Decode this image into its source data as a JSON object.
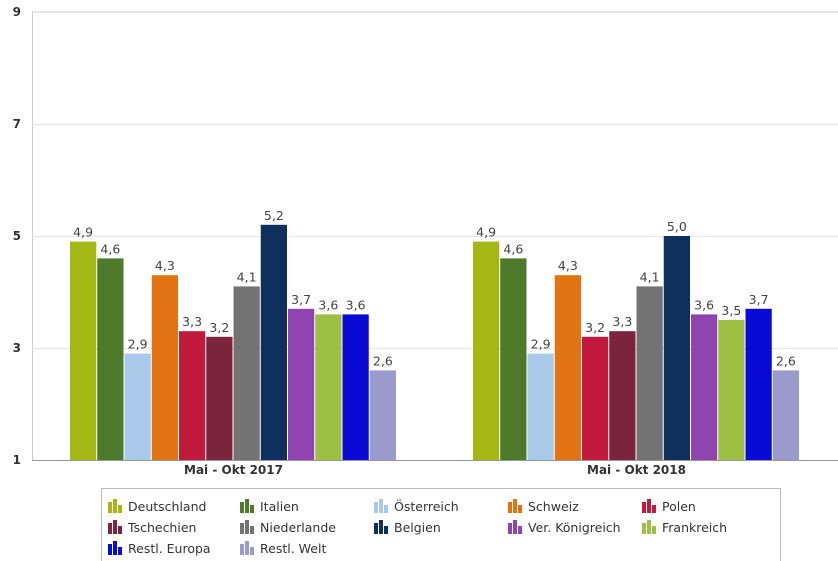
{
  "chart_data": {
    "type": "bar",
    "categories": [
      "Mai - Okt 2017",
      "Mai - Okt 2018"
    ],
    "ylim": [
      1,
      9
    ],
    "y_ticks": [
      "1",
      "3",
      "5",
      "7",
      "9"
    ],
    "grid": true,
    "legend_position": "bottom",
    "series": [
      {
        "name": "Deutschland",
        "color": "#a3b814",
        "values": [
          4.9,
          4.9
        ],
        "labels": [
          "4,9",
          "4,9"
        ]
      },
      {
        "name": "Italien",
        "color": "#4e7a2c",
        "values": [
          4.6,
          4.6
        ],
        "labels": [
          "4,6",
          "4,6"
        ]
      },
      {
        "name": "Österreich",
        "color": "#a9c9e8",
        "values": [
          2.9,
          2.9
        ],
        "labels": [
          "2,9",
          "2,9"
        ]
      },
      {
        "name": "Schweiz",
        "color": "#e37414",
        "values": [
          4.3,
          4.3
        ],
        "labels": [
          "4,3",
          "4,3"
        ]
      },
      {
        "name": "Polen",
        "color": "#c21a3c",
        "values": [
          3.3,
          3.2
        ],
        "labels": [
          "3,3",
          "3,2"
        ]
      },
      {
        "name": "Tschechien",
        "color": "#7a2440",
        "values": [
          3.2,
          3.3
        ],
        "labels": [
          "3,2",
          "3,3"
        ]
      },
      {
        "name": "Niederlande",
        "color": "#737373",
        "values": [
          4.1,
          4.1
        ],
        "labels": [
          "4,1",
          "4,1"
        ]
      },
      {
        "name": "Belgien",
        "color": "#0f2f5c",
        "values": [
          5.2,
          5.0
        ],
        "labels": [
          "5,2",
          "5,0"
        ]
      },
      {
        "name": "Ver. Königreich",
        "color": "#8f44b0",
        "values": [
          3.7,
          3.6
        ],
        "labels": [
          "3,7",
          "3,6"
        ]
      },
      {
        "name": "Frankreich",
        "color": "#9dc044",
        "values": [
          3.6,
          3.5
        ],
        "labels": [
          "3,6",
          "3,5"
        ]
      },
      {
        "name": "Restl. Europa",
        "color": "#0a0ad6",
        "values": [
          3.6,
          3.7
        ],
        "labels": [
          "3,6",
          "3,7"
        ]
      },
      {
        "name": "Restl. Welt",
        "color": "#9a9acd",
        "values": [
          2.6,
          2.6
        ],
        "labels": [
          "2,6",
          "2,6"
        ]
      }
    ]
  }
}
